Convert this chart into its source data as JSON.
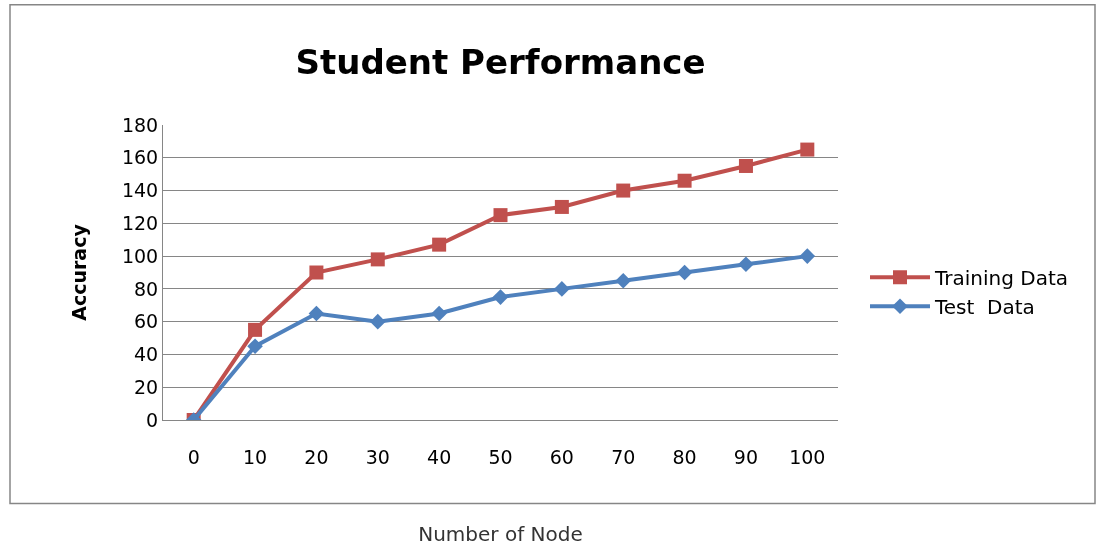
{
  "chart_data": {
    "type": "line",
    "title": "Student Performance",
    "xlabel": "Number of Node",
    "ylabel": "Accuracy",
    "categories": [
      "0",
      "10",
      "20",
      "30",
      "40",
      "50",
      "60",
      "70",
      "80",
      "90",
      "100"
    ],
    "series": [
      {
        "name": "Training Data",
        "color": "#c0504d",
        "marker": "square",
        "values": [
          0,
          55,
          90,
          98,
          107,
          125,
          130,
          140,
          146,
          155,
          165
        ]
      },
      {
        "name": "Test  Data",
        "color": "#4f81bd",
        "marker": "diamond",
        "values": [
          0,
          45,
          65,
          60,
          65,
          75,
          80,
          85,
          90,
          95,
          100
        ]
      }
    ],
    "ylim": [
      0,
      180
    ],
    "yticks": [
      0,
      20,
      40,
      60,
      80,
      100,
      120,
      140,
      160,
      180
    ],
    "grid": "y",
    "legend": "right",
    "line_style": "solid"
  }
}
